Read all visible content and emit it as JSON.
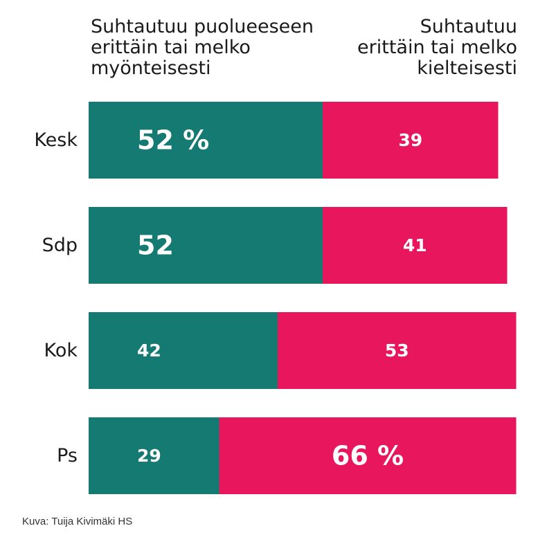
{
  "header": {
    "left_lines": [
      "Suhtautuu puolueeseen",
      "erittäin tai melko",
      "myönteisesti"
    ],
    "right_lines": [
      "Suhtautuu",
      "erittäin tai melko",
      "kielteisesti"
    ]
  },
  "caption": "Kuva: Tuija Kivimäki HS",
  "colors": {
    "positive": "#157a71",
    "negative": "#e8175d",
    "label": "#ffffff"
  },
  "chart_data": {
    "type": "bar",
    "orientation": "horizontal-stacked",
    "categories": [
      "Kesk",
      "Sdp",
      "Kok",
      "Ps"
    ],
    "series": [
      {
        "name": "Suhtautuu puolueeseen erittäin tai melko myönteisesti",
        "values": [
          52,
          52,
          42,
          29
        ],
        "labels": [
          "52 %",
          "52",
          "42",
          "29"
        ]
      },
      {
        "name": "Suhtautuu erittäin tai melko kielteisesti",
        "values": [
          39,
          41,
          53,
          66
        ],
        "labels": [
          "39",
          "41",
          "53",
          "66 %"
        ]
      }
    ],
    "xlim": [
      0,
      95
    ],
    "grid": false,
    "legend": "top"
  }
}
